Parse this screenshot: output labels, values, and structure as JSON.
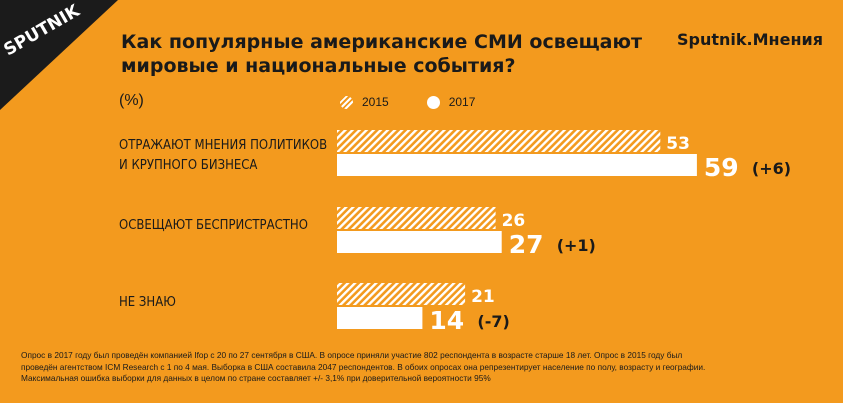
{
  "brand": {
    "logo_text": "SPUTNIK",
    "right_label": "Sputnik.Мнения"
  },
  "colors": {
    "background": "#f39a1e",
    "bar_2017": "#ffffff",
    "bar_2015": "hatched-white"
  },
  "chart_data": {
    "type": "bar",
    "orientation": "horizontal",
    "title": "Как популярные американские СМИ освещают мировые и национальные события?",
    "unit_label": "(%)",
    "legend": [
      "2015",
      "2017"
    ],
    "categories": [
      "Отражают мнения политиков и крупного бизнеса",
      "Освещают беспристрастно",
      "Не знаю"
    ],
    "series": [
      {
        "name": "2015",
        "values": [
          53,
          26,
          21
        ],
        "style": "hatched"
      },
      {
        "name": "2017",
        "values": [
          59,
          27,
          14
        ],
        "style": "solid-white"
      }
    ],
    "changes": [
      "(+6)",
      "(+1)",
      "(-7)"
    ],
    "xlim": [
      0,
      59
    ],
    "grid": false
  },
  "labels": {
    "cat1_line1": "ОТРАЖАЮТ МНЕНИЯ ПОЛИТИКОВ",
    "cat1_line2": "И КРУПНОГО БИЗНЕСА",
    "cat2": "ОСВЕЩАЮТ БЕСПРИСТРАСТНО",
    "cat3": "НЕ ЗНАЮ"
  },
  "footer": {
    "line1": "Опрос в 2017 году был проведён компанией Ifop с 20 по 27 сентября в США. В опросе приняли участие 802 респондента в возрасте старше 18 лет. Опрос в 2015 году был",
    "line2": "проведён агентством ICM Research с 1 по 4 мая. Выборка в США составила 2047 респондентов. В обоих опросах она репрезентирует население по полу, возрасту и географии.",
    "line3": "Максимальная ошибка выборки для данных в целом по стране составляет +/- 3,1% при доверительной вероятности 95%"
  }
}
